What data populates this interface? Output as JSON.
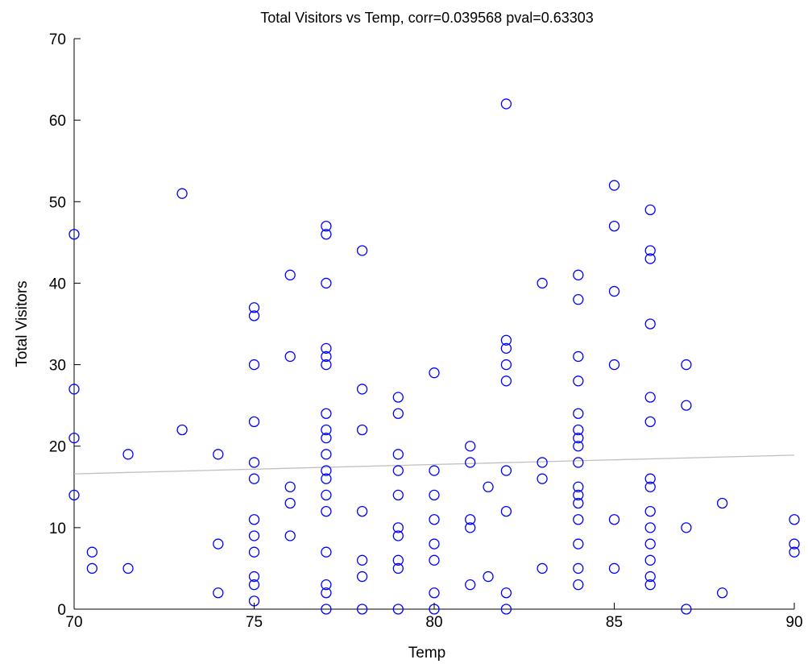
{
  "chart_data": {
    "type": "scatter",
    "title": "Total Visitors vs Temp, corr=0.039568 pval=0.63303",
    "xlabel": "Temp",
    "ylabel": "Total Visitors",
    "xlim": [
      70,
      90
    ],
    "ylim": [
      0,
      70
    ],
    "xticks": [
      70,
      75,
      80,
      85,
      90
    ],
    "yticks": [
      0,
      10,
      20,
      30,
      40,
      50,
      60,
      70
    ],
    "grid": false,
    "marker_color": "#0000ff",
    "fit_line_color": "#c0c0c0",
    "fit_line": {
      "x": [
        70,
        90
      ],
      "y": [
        16.6,
        18.9
      ]
    },
    "points": [
      [
        70,
        46
      ],
      [
        70,
        27
      ],
      [
        70,
        21
      ],
      [
        70,
        14
      ],
      [
        70.5,
        7
      ],
      [
        70.5,
        5
      ],
      [
        71.5,
        19
      ],
      [
        71.5,
        5
      ],
      [
        73,
        51
      ],
      [
        73,
        22
      ],
      [
        74,
        19
      ],
      [
        74,
        8
      ],
      [
        74,
        2
      ],
      [
        75,
        37
      ],
      [
        75,
        36
      ],
      [
        75,
        30
      ],
      [
        75,
        23
      ],
      [
        75,
        18
      ],
      [
        75,
        16
      ],
      [
        75,
        11
      ],
      [
        75,
        9
      ],
      [
        75,
        7
      ],
      [
        75,
        4
      ],
      [
        75,
        3
      ],
      [
        75,
        1
      ],
      [
        76,
        41
      ],
      [
        76,
        31
      ],
      [
        76,
        15
      ],
      [
        76,
        13
      ],
      [
        76,
        9
      ],
      [
        77,
        47
      ],
      [
        77,
        46
      ],
      [
        77,
        40
      ],
      [
        77,
        32
      ],
      [
        77,
        31
      ],
      [
        77,
        30
      ],
      [
        77,
        24
      ],
      [
        77,
        22
      ],
      [
        77,
        21
      ],
      [
        77,
        19
      ],
      [
        77,
        17
      ],
      [
        77,
        16
      ],
      [
        77,
        14
      ],
      [
        77,
        12
      ],
      [
        77,
        7
      ],
      [
        77,
        3
      ],
      [
        77,
        2
      ],
      [
        77,
        0
      ],
      [
        78,
        44
      ],
      [
        78,
        27
      ],
      [
        78,
        22
      ],
      [
        78,
        12
      ],
      [
        78,
        6
      ],
      [
        78,
        4
      ],
      [
        78,
        0
      ],
      [
        79,
        26
      ],
      [
        79,
        24
      ],
      [
        79,
        19
      ],
      [
        79,
        17
      ],
      [
        79,
        14
      ],
      [
        79,
        10
      ],
      [
        79,
        9
      ],
      [
        79,
        6
      ],
      [
        79,
        5
      ],
      [
        79,
        0
      ],
      [
        80,
        29
      ],
      [
        80,
        17
      ],
      [
        80,
        14
      ],
      [
        80,
        11
      ],
      [
        80,
        8
      ],
      [
        80,
        6
      ],
      [
        80,
        2
      ],
      [
        80,
        0
      ],
      [
        81,
        20
      ],
      [
        81,
        18
      ],
      [
        81,
        11
      ],
      [
        81,
        10
      ],
      [
        81,
        3
      ],
      [
        81.5,
        15
      ],
      [
        81.5,
        4
      ],
      [
        82,
        62
      ],
      [
        82,
        33
      ],
      [
        82,
        32
      ],
      [
        82,
        30
      ],
      [
        82,
        28
      ],
      [
        82,
        17
      ],
      [
        82,
        12
      ],
      [
        82,
        2
      ],
      [
        82,
        0
      ],
      [
        83,
        40
      ],
      [
        83,
        18
      ],
      [
        83,
        16
      ],
      [
        83,
        5
      ],
      [
        84,
        41
      ],
      [
        84,
        38
      ],
      [
        84,
        31
      ],
      [
        84,
        28
      ],
      [
        84,
        24
      ],
      [
        84,
        22
      ],
      [
        84,
        21
      ],
      [
        84,
        20
      ],
      [
        84,
        18
      ],
      [
        84,
        15
      ],
      [
        84,
        14
      ],
      [
        84,
        13
      ],
      [
        84,
        11
      ],
      [
        84,
        8
      ],
      [
        84,
        5
      ],
      [
        84,
        3
      ],
      [
        85,
        52
      ],
      [
        85,
        47
      ],
      [
        85,
        39
      ],
      [
        85,
        30
      ],
      [
        85,
        11
      ],
      [
        85,
        5
      ],
      [
        86,
        49
      ],
      [
        86,
        44
      ],
      [
        86,
        43
      ],
      [
        86,
        35
      ],
      [
        86,
        26
      ],
      [
        86,
        23
      ],
      [
        86,
        16
      ],
      [
        86,
        15
      ],
      [
        86,
        12
      ],
      [
        86,
        10
      ],
      [
        86,
        8
      ],
      [
        86,
        6
      ],
      [
        86,
        4
      ],
      [
        86,
        3
      ],
      [
        87,
        30
      ],
      [
        87,
        25
      ],
      [
        87,
        10
      ],
      [
        87,
        0
      ],
      [
        88,
        13
      ],
      [
        88,
        2
      ],
      [
        90,
        11
      ],
      [
        90,
        8
      ],
      [
        90,
        7
      ]
    ]
  }
}
